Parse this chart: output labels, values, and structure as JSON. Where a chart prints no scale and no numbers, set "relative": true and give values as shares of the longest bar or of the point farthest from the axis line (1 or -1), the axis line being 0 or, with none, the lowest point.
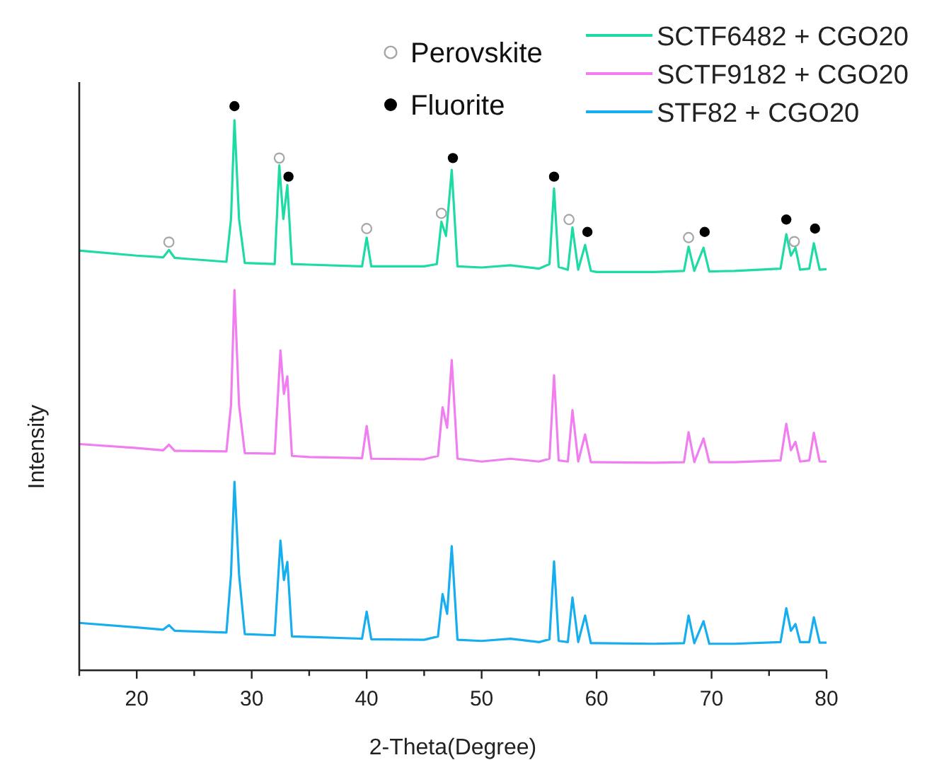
{
  "chart_data": {
    "type": "line",
    "relative": true,
    "xlabel": "2-Theta(Degree)",
    "ylabel": "Intensity",
    "xlim": [
      15,
      80
    ],
    "xticks": [
      {
        "value": 15,
        "label": null
      },
      20,
      {
        "value": 25,
        "label": null
      },
      30,
      {
        "value": 35,
        "label": null
      },
      40,
      {
        "value": 45,
        "label": null
      },
      50,
      {
        "value": 55,
        "label": null
      },
      60,
      {
        "value": 65,
        "label": null
      },
      70,
      {
        "value": 75,
        "label": null
      },
      80
    ],
    "legend": "top",
    "series": [
      {
        "name": "SCTF6482 + CGO20",
        "color": "#1edba6",
        "x": [
          15,
          20,
          22.3,
          22.8,
          23.3,
          27.8,
          28.2,
          28.5,
          28.9,
          29.4,
          32,
          32.4,
          32.75,
          33.1,
          33.5,
          35,
          39.6,
          40,
          40.4,
          45,
          46.1,
          46.5,
          46.9,
          47.4,
          47.9,
          50,
          52.5,
          55,
          55.9,
          56.3,
          56.7,
          57.5,
          57.9,
          58.4,
          59,
          59.5,
          60,
          65,
          67.6,
          68,
          68.5,
          69.3,
          69.8,
          72,
          76,
          76.5,
          76.9,
          77.3,
          77.7,
          78.5,
          78.9,
          79.4,
          80
        ],
        "values": [
          0.744,
          0.735,
          0.732,
          0.745,
          0.731,
          0.724,
          0.8,
          0.975,
          0.8,
          0.722,
          0.72,
          0.895,
          0.8,
          0.86,
          0.72,
          0.719,
          0.716,
          0.767,
          0.716,
          0.716,
          0.72,
          0.795,
          0.77,
          0.887,
          0.716,
          0.714,
          0.718,
          0.712,
          0.72,
          0.854,
          0.715,
          0.71,
          0.785,
          0.71,
          0.754,
          0.708,
          0.706,
          0.706,
          0.708,
          0.751,
          0.708,
          0.749,
          0.707,
          0.708,
          0.712,
          0.773,
          0.735,
          0.749,
          0.71,
          0.712,
          0.757,
          0.71,
          0.711
        ]
      },
      {
        "name": "SCTF9182 + CGO20",
        "color": "#f07ef0",
        "x": [
          15,
          20,
          22.3,
          22.8,
          23.3,
          27.8,
          28.2,
          28.5,
          28.9,
          29.4,
          32,
          32.5,
          32.8,
          33.1,
          33.5,
          35,
          39.6,
          40,
          40.4,
          45,
          46.2,
          46.6,
          47,
          47.4,
          47.9,
          50,
          52.5,
          55,
          55.9,
          56.3,
          56.7,
          57.5,
          57.9,
          58.4,
          59,
          59.5,
          60,
          65,
          67.6,
          68,
          68.5,
          69.3,
          69.8,
          72,
          76,
          76.5,
          76.9,
          77.3,
          77.7,
          78.5,
          78.9,
          79.4,
          80
        ],
        "values": [
          0.401,
          0.394,
          0.39,
          0.4,
          0.389,
          0.388,
          0.47,
          0.674,
          0.47,
          0.385,
          0.384,
          0.567,
          0.49,
          0.521,
          0.38,
          0.378,
          0.376,
          0.433,
          0.375,
          0.374,
          0.38,
          0.466,
          0.43,
          0.55,
          0.375,
          0.37,
          0.375,
          0.37,
          0.375,
          0.523,
          0.372,
          0.37,
          0.461,
          0.37,
          0.418,
          0.369,
          0.369,
          0.368,
          0.369,
          0.422,
          0.369,
          0.411,
          0.369,
          0.369,
          0.372,
          0.437,
          0.39,
          0.405,
          0.37,
          0.372,
          0.421,
          0.37,
          0.37
        ]
      },
      {
        "name": "STF82 + CGO20",
        "color": "#17aef0",
        "x": [
          15,
          20,
          22.3,
          22.8,
          23.3,
          27.8,
          28.2,
          28.5,
          28.9,
          29.4,
          32,
          32.5,
          32.8,
          33.1,
          33.5,
          35,
          39.6,
          40,
          40.4,
          45,
          46.2,
          46.6,
          47,
          47.4,
          47.9,
          50,
          52.5,
          55,
          55.9,
          56.3,
          56.7,
          57.5,
          57.9,
          58.4,
          59,
          59.5,
          60,
          65,
          67.6,
          68,
          68.5,
          69.3,
          69.8,
          72,
          76,
          76.5,
          76.9,
          77.3,
          77.7,
          78.5,
          78.9,
          79.4,
          80
        ],
        "values": [
          0.084,
          0.076,
          0.072,
          0.08,
          0.07,
          0.067,
          0.17,
          0.334,
          0.17,
          0.064,
          0.062,
          0.23,
          0.16,
          0.192,
          0.06,
          0.059,
          0.056,
          0.104,
          0.055,
          0.054,
          0.06,
          0.135,
          0.1,
          0.22,
          0.054,
          0.052,
          0.056,
          0.05,
          0.055,
          0.193,
          0.052,
          0.05,
          0.129,
          0.05,
          0.097,
          0.048,
          0.048,
          0.047,
          0.048,
          0.097,
          0.048,
          0.087,
          0.047,
          0.047,
          0.05,
          0.11,
          0.07,
          0.082,
          0.05,
          0.05,
          0.094,
          0.049,
          0.049
        ]
      },
      {
        "name": "Perovskite",
        "type": "scatter",
        "marker": "circle",
        "color": "#a6a6a6",
        "x": [
          22.8,
          32.4,
          40,
          46.5,
          57.6,
          68,
          77.2
        ],
        "values": [
          0.759,
          0.908,
          0.783,
          0.81,
          0.799,
          0.767,
          0.76
        ]
      },
      {
        "name": "Fluorite",
        "type": "scatter",
        "marker": "circle",
        "color": "#000000",
        "x": [
          28.5,
          33.2,
          47.5,
          56.3,
          59.2,
          69.4,
          76.5,
          79
        ],
        "values": [
          1.0,
          0.875,
          0.908,
          0.875,
          0.777,
          0.777,
          0.799,
          0.783
        ]
      }
    ]
  }
}
